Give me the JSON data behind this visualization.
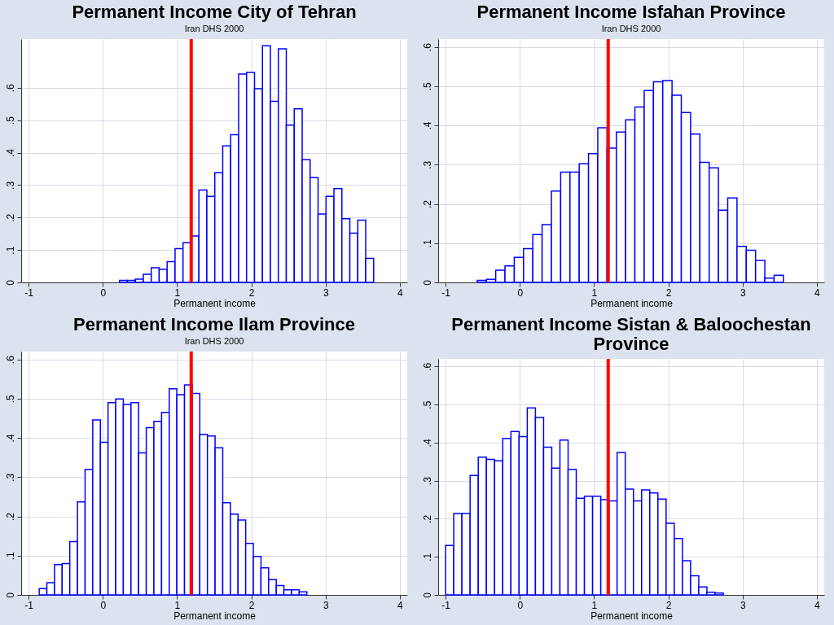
{
  "chart_data": [
    {
      "type": "histogram",
      "title": "Permanent Income City of Tehran",
      "subtitle": "Iran DHS 2000",
      "xlabel": "Permanent income",
      "color": "#0000ff",
      "grid": true,
      "bins": [
        0.224,
        0.331,
        0.438,
        0.545,
        0.652,
        0.759,
        0.866,
        0.973,
        1.08,
        1.187,
        1.294,
        1.401,
        1.508,
        1.615,
        1.722,
        1.829,
        1.936,
        2.043,
        2.15,
        2.257,
        2.364,
        2.471,
        2.578,
        2.685,
        2.792,
        2.899,
        3.006,
        3.113,
        3.22,
        3.327,
        3.434,
        3.541,
        3.648
      ],
      "values": [
        0.006,
        0.006,
        0.01,
        0.025,
        0.045,
        0.04,
        0.064,
        0.104,
        0.122,
        0.143,
        0.285,
        0.265,
        0.338,
        0.421,
        0.455,
        0.642,
        0.647,
        0.597,
        0.729,
        0.558,
        0.72,
        0.485,
        0.535,
        0.378,
        0.323,
        0.211,
        0.265,
        0.289,
        0.196,
        0.152,
        0.192,
        0.074
      ],
      "xlim": [
        -1.1,
        4.1
      ],
      "xticks": [
        -1,
        0,
        1,
        2,
        3,
        4
      ],
      "ylim": [
        0,
        0.75
      ],
      "yticks": [
        {
          "value": 0,
          "label": "0"
        },
        {
          "value": 0.1,
          "label": ".1"
        },
        {
          "value": 0.2,
          "label": ".2"
        },
        {
          "value": 0.3,
          "label": ".3"
        },
        {
          "value": 0.4,
          "label": ".4"
        },
        {
          "value": 0.5,
          "label": ".5"
        },
        {
          "value": 0.6,
          "label": ".6"
        }
      ],
      "ref_lines": [
        {
          "axis": "x",
          "value": 1.19,
          "color": "#ff0000"
        }
      ]
    },
    {
      "type": "histogram",
      "title": "Permanent Income Isfahan Province",
      "subtitle": "Iran DHS 2000",
      "xlabel": "Permanent income",
      "color": "#0000ff",
      "grid": true,
      "bins": [
        -0.575,
        -0.45,
        -0.325,
        -0.2,
        -0.075,
        0.05,
        0.175,
        0.3,
        0.425,
        0.55,
        0.675,
        0.8,
        0.925,
        1.05,
        1.175,
        1.3,
        1.425,
        1.55,
        1.675,
        1.8,
        1.925,
        2.05,
        2.175,
        2.3,
        2.425,
        2.55,
        2.675,
        2.8,
        2.925,
        3.05,
        3.175,
        3.3,
        3.425,
        3.55
      ],
      "values": [
        0.005,
        0.008,
        0.031,
        0.042,
        0.064,
        0.086,
        0.122,
        0.147,
        0.233,
        0.281,
        0.281,
        0.302,
        0.328,
        0.394,
        0.342,
        0.383,
        0.414,
        0.447,
        0.489,
        0.511,
        0.514,
        0.477,
        0.433,
        0.378,
        0.306,
        0.292,
        0.184,
        0.215,
        0.092,
        0.082,
        0.056,
        0.011,
        0.018
      ],
      "xlim": [
        -1.1,
        4.1
      ],
      "xticks": [
        -1,
        0,
        1,
        2,
        3,
        4
      ],
      "ylim": [
        0,
        0.62
      ],
      "yticks": [
        {
          "value": 0,
          "label": "0"
        },
        {
          "value": 0.1,
          "label": ".1"
        },
        {
          "value": 0.2,
          "label": ".2"
        },
        {
          "value": 0.3,
          "label": ".3"
        },
        {
          "value": 0.4,
          "label": ".4"
        },
        {
          "value": 0.5,
          "label": ".5"
        },
        {
          "value": 0.6,
          "label": ".6"
        }
      ],
      "ref_lines": [
        {
          "axis": "x",
          "value": 1.19,
          "color": "#ff0000"
        }
      ]
    },
    {
      "type": "histogram",
      "title": "Permanent Income Ilam Province",
      "subtitle": "Iran DHS 2000",
      "xlabel": "Permanent income",
      "color": "#0000ff",
      "grid": true,
      "bins": [
        -0.857,
        -0.754,
        -0.651,
        -0.548,
        -0.445,
        -0.342,
        -0.239,
        -0.136,
        -0.033,
        0.07,
        0.173,
        0.276,
        0.379,
        0.482,
        0.585,
        0.688,
        0.791,
        0.894,
        0.997,
        1.1,
        1.203,
        1.306,
        1.409,
        1.512,
        1.615,
        1.718,
        1.821,
        1.924,
        2.027,
        2.13,
        2.233,
        2.336,
        2.439,
        2.542,
        2.645,
        2.748
      ],
      "values": [
        0.016,
        0.031,
        0.077,
        0.08,
        0.136,
        0.237,
        0.32,
        0.446,
        0.389,
        0.49,
        0.499,
        0.485,
        0.49,
        0.362,
        0.426,
        0.442,
        0.465,
        0.525,
        0.51,
        0.535,
        0.513,
        0.409,
        0.405,
        0.375,
        0.235,
        0.206,
        0.191,
        0.131,
        0.098,
        0.069,
        0.039,
        0.024,
        0.013,
        0.013,
        0.008
      ],
      "xlim": [
        -1.1,
        4.1
      ],
      "xticks": [
        -1,
        0,
        1,
        2,
        3,
        4
      ],
      "ylim": [
        0,
        0.62
      ],
      "yticks": [
        {
          "value": 0,
          "label": "0"
        },
        {
          "value": 0.1,
          "label": ".1"
        },
        {
          "value": 0.2,
          "label": ".2"
        },
        {
          "value": 0.3,
          "label": ".3"
        },
        {
          "value": 0.4,
          "label": ".4"
        },
        {
          "value": 0.5,
          "label": ".5"
        },
        {
          "value": 0.6,
          "label": ".6"
        }
      ],
      "ref_lines": [
        {
          "axis": "x",
          "value": 1.19,
          "color": "#ff0000"
        }
      ]
    },
    {
      "type": "histogram",
      "title": "Permanent Income Sistan & Baloochestan Province",
      "xlabel": "Permanent income",
      "color": "#0000ff",
      "grid": true,
      "bins": [
        -1,
        -0.89,
        -0.78,
        -0.67,
        -0.56,
        -0.45,
        -0.34,
        -0.23,
        -0.12,
        -0.01,
        0.1,
        0.21,
        0.32,
        0.43,
        0.54,
        0.65,
        0.76,
        0.87,
        0.98,
        1.09,
        1.2,
        1.31,
        1.42,
        1.53,
        1.64,
        1.75,
        1.86,
        1.97,
        2.08,
        2.19,
        2.3,
        2.41,
        2.52,
        2.63,
        2.74
      ],
      "values": [
        0.13,
        0.214,
        0.214,
        0.314,
        0.362,
        0.356,
        0.352,
        0.411,
        0.429,
        0.416,
        0.491,
        0.466,
        0.388,
        0.333,
        0.407,
        0.33,
        0.254,
        0.259,
        0.259,
        0.25,
        0.247,
        0.374,
        0.278,
        0.247,
        0.276,
        0.268,
        0.252,
        0.188,
        0.148,
        0.09,
        0.05,
        0.021,
        0.007,
        0.005
      ],
      "xlim": [
        -1.1,
        4.1
      ],
      "xticks": [
        -1,
        0,
        1,
        2,
        3,
        4
      ],
      "ylim": [
        0,
        0.62
      ],
      "yticks": [
        {
          "value": 0,
          "label": "0"
        },
        {
          "value": 0.1,
          "label": ".1"
        },
        {
          "value": 0.2,
          "label": ".2"
        },
        {
          "value": 0.3,
          "label": ".3"
        },
        {
          "value": 0.4,
          "label": ".4"
        },
        {
          "value": 0.5,
          "label": ".5"
        },
        {
          "value": 0.6,
          "label": ".6"
        }
      ],
      "ref_lines": [
        {
          "axis": "x",
          "value": 1.19,
          "color": "#ff0000"
        }
      ]
    }
  ]
}
